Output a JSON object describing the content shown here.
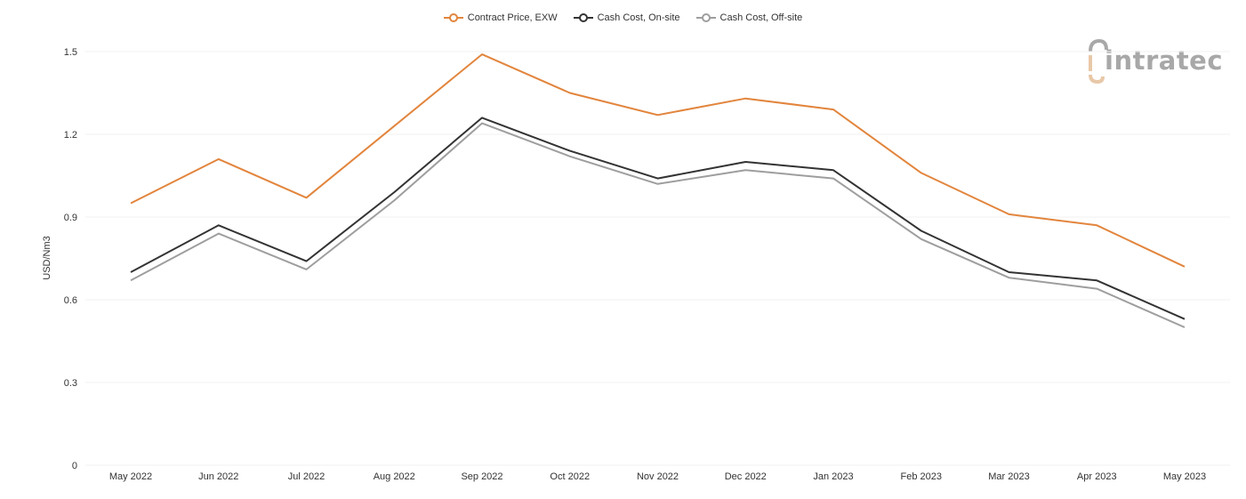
{
  "legend": [
    {
      "label": "Contract Price, EXW",
      "color": "#e2853d"
    },
    {
      "label": "Cash Cost, On-site",
      "color": "#333333"
    },
    {
      "label": "Cash Cost, Off-site",
      "color": "#9e9e9e"
    }
  ],
  "logo": {
    "text": "intratec"
  },
  "chart_data": {
    "type": "line",
    "ylabel": "USD/Nm3",
    "xlabel": "",
    "ylim": [
      0,
      1.5
    ],
    "yticks": [
      "0",
      "0.3",
      "0.6",
      "0.9",
      "1.2",
      "1.5"
    ],
    "grid": true,
    "legend_position": "top-center",
    "categories": [
      "May 2022",
      "Jun 2022",
      "Jul 2022",
      "Aug 2022",
      "Sep 2022",
      "Oct 2022",
      "Nov 2022",
      "Dec 2022",
      "Jan 2023",
      "Feb 2023",
      "Mar 2023",
      "Apr 2023",
      "May 2023"
    ],
    "series": [
      {
        "name": "Contract Price, EXW",
        "color": "#e2853d",
        "values": [
          0.95,
          1.11,
          0.97,
          1.23,
          1.49,
          1.35,
          1.27,
          1.33,
          1.29,
          1.06,
          0.91,
          0.87,
          0.72
        ]
      },
      {
        "name": "Cash Cost, On-site",
        "color": "#333333",
        "values": [
          0.7,
          0.87,
          0.74,
          0.99,
          1.26,
          1.14,
          1.04,
          1.1,
          1.07,
          0.85,
          0.7,
          0.67,
          0.53
        ]
      },
      {
        "name": "Cash Cost, Off-site",
        "color": "#9e9e9e",
        "values": [
          0.67,
          0.84,
          0.71,
          0.96,
          1.24,
          1.12,
          1.02,
          1.07,
          1.04,
          0.82,
          0.68,
          0.64,
          0.5
        ]
      }
    ]
  }
}
